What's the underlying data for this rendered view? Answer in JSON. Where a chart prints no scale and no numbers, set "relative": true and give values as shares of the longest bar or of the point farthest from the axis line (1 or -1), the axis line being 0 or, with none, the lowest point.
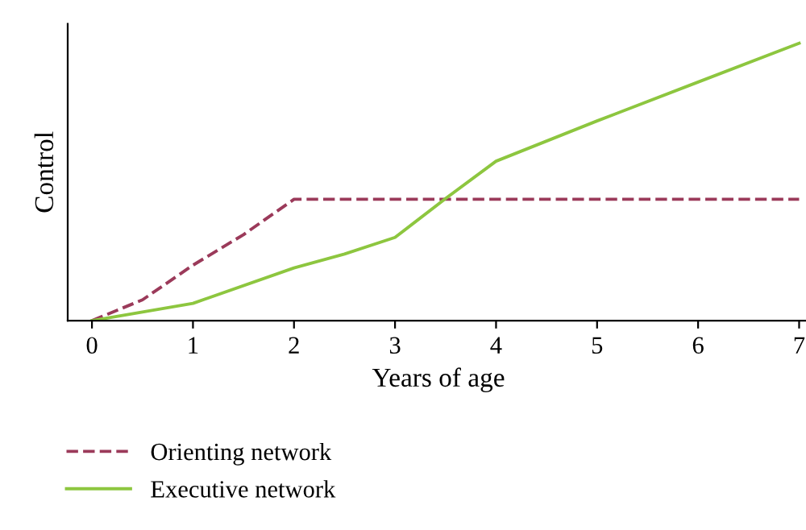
{
  "chart_data": {
    "type": "line",
    "xlabel": "Years of age",
    "ylabel": "Control",
    "relative": true,
    "xlim": [
      -0.24,
      7.1
    ],
    "xticks": [
      0,
      1,
      2,
      3,
      4,
      5,
      6,
      7
    ],
    "legend": "bottom left",
    "grid": false,
    "series": [
      {
        "name": "Orienting network",
        "color": "#9b3a5a",
        "line_style": "dashed",
        "x": [
          0,
          0.5,
          1,
          1.5,
          2,
          3,
          4,
          5,
          6,
          7
        ],
        "values": [
          0,
          0.075,
          0.2,
          0.31,
          0.4375,
          0.4375,
          0.4375,
          0.4375,
          0.4375,
          0.4375
        ]
      },
      {
        "name": "Executive network",
        "color": "#8dc63f",
        "line_style": "solid",
        "x": [
          0,
          1,
          2,
          2.5,
          3,
          3.5,
          4,
          5,
          6,
          7
        ],
        "values": [
          0,
          0.0625,
          0.19,
          0.24,
          0.3,
          0.44,
          0.575,
          0.72,
          0.86,
          1.0
        ]
      }
    ]
  }
}
